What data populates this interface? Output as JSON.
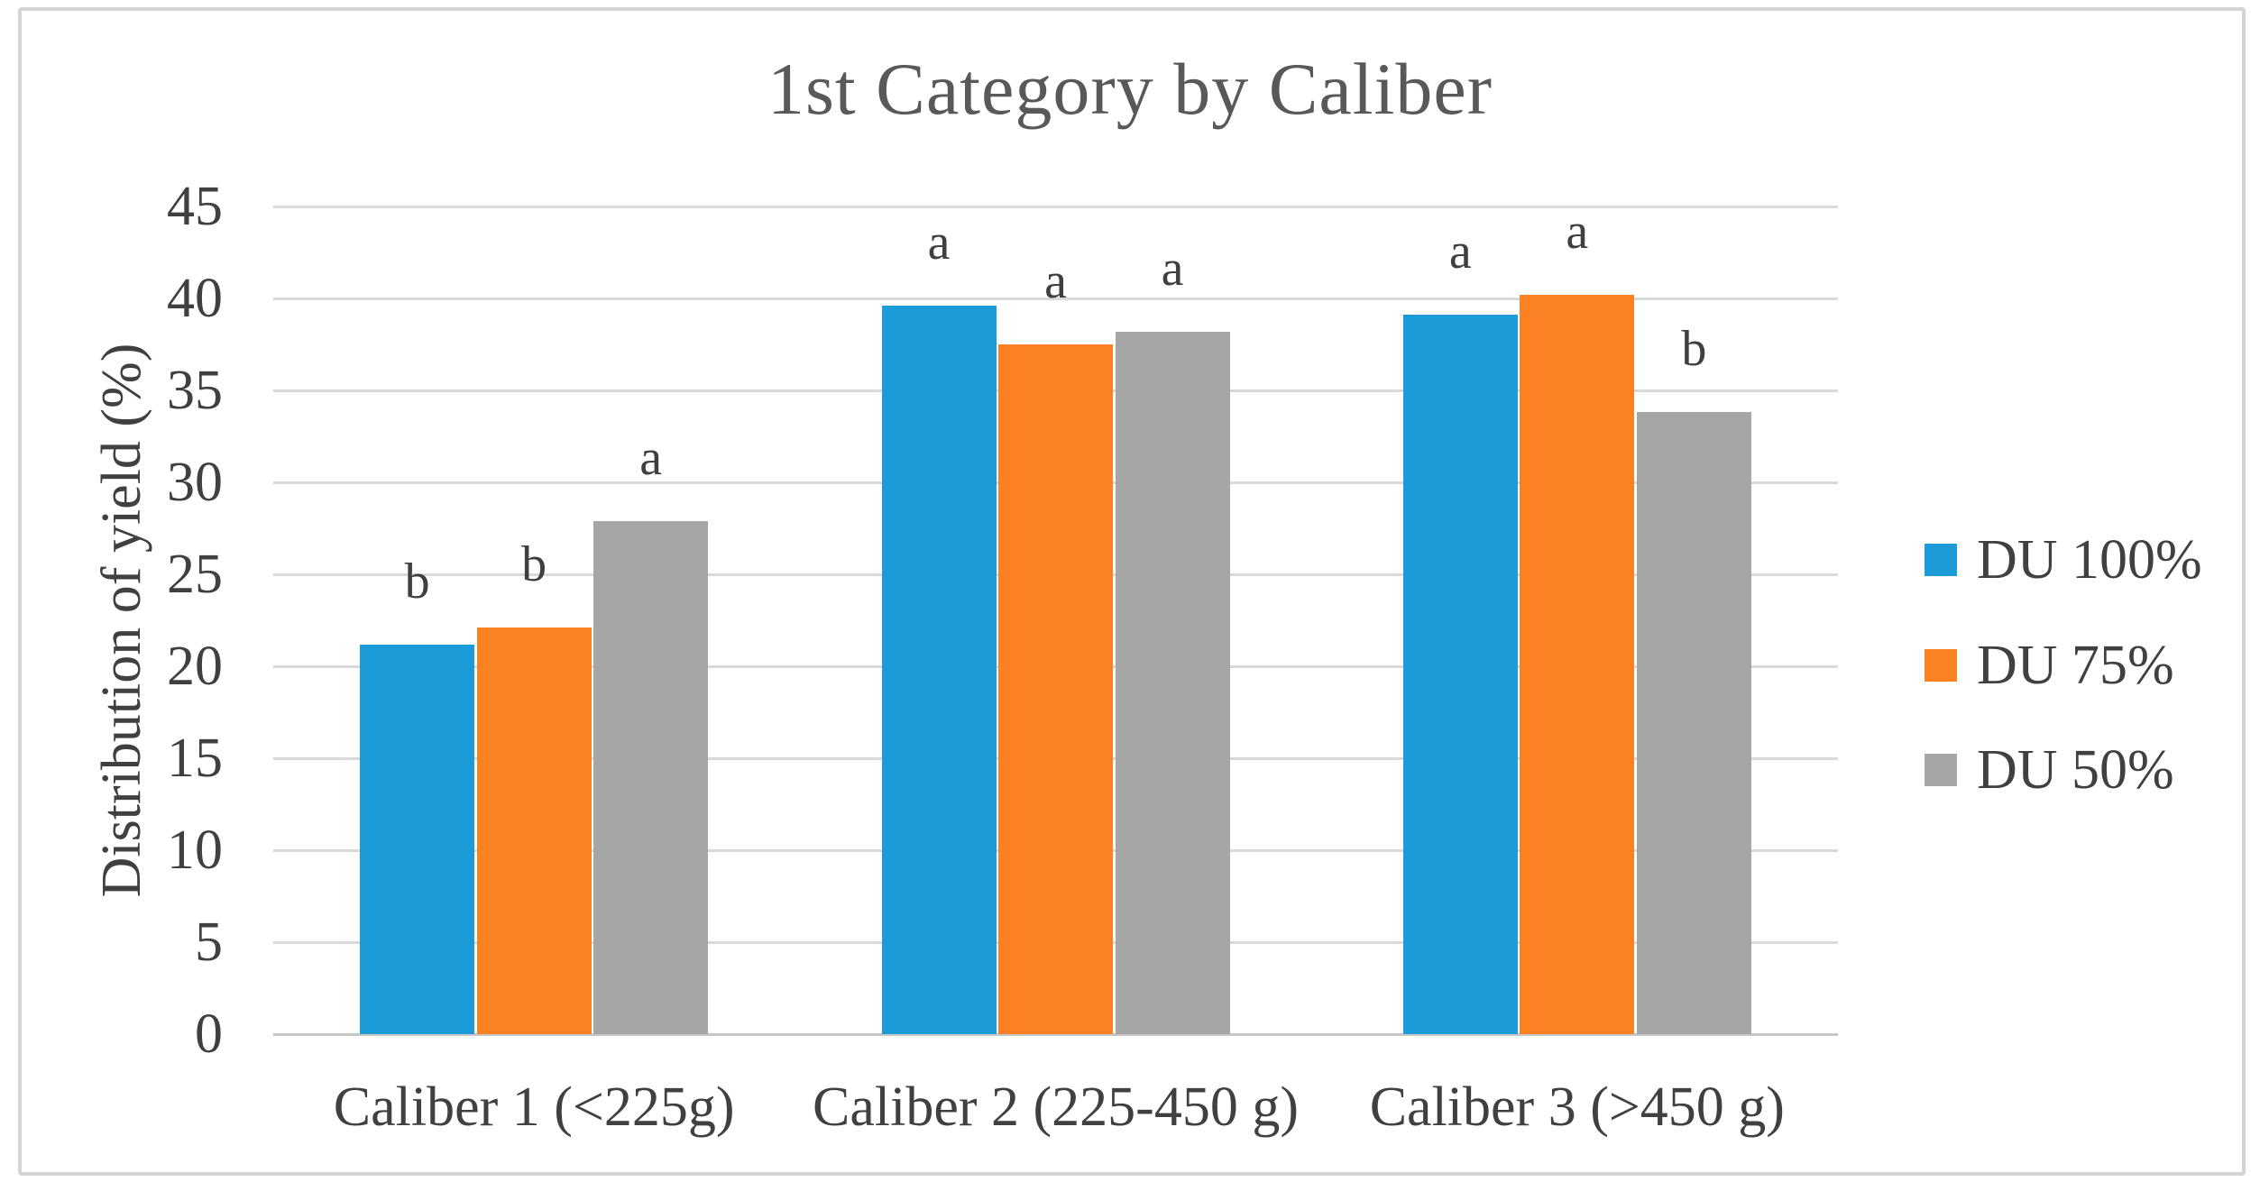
{
  "frame": {
    "border_color": "#d4d4d4",
    "background_color": "#ffffff"
  },
  "colors": {
    "gridline": "#d9d9d9",
    "axis_line": "#c6c6c6",
    "text": "#404040",
    "title_text": "#595959",
    "letter_text": "#3f3f3f"
  },
  "chart_data": {
    "type": "bar",
    "title": "1st Category by Caliber",
    "xlabel": "",
    "ylabel": "Distribution of yield (%)",
    "categories": [
      "Caliber 1 (<225g)",
      "Caliber 2 (225-450 g)",
      "Caliber 3 (>450 g)"
    ],
    "series": [
      {
        "name": "DU 100%",
        "color": "#1b9cd9",
        "values": [
          21.2,
          39.6,
          39.1
        ],
        "letters": [
          "b",
          "a",
          "a"
        ]
      },
      {
        "name": "DU 75%",
        "color": "#fb8122",
        "values": [
          22.1,
          37.5,
          40.2
        ],
        "letters": [
          "b",
          "a",
          "a"
        ]
      },
      {
        "name": "DU 50%",
        "color": "#a6a6a6",
        "values": [
          27.9,
          38.2,
          33.8
        ],
        "letters": [
          "a",
          "a",
          "b"
        ]
      }
    ],
    "ylim": [
      0,
      45
    ],
    "ytick_step": 5,
    "ytick_labels": [
      "0",
      "5",
      "10",
      "15",
      "20",
      "25",
      "30",
      "35",
      "40",
      "45"
    ],
    "grid": true,
    "legend_position": "right",
    "legend_entries": [
      "DU 100%",
      "DU 75%",
      "DU 50%"
    ]
  }
}
